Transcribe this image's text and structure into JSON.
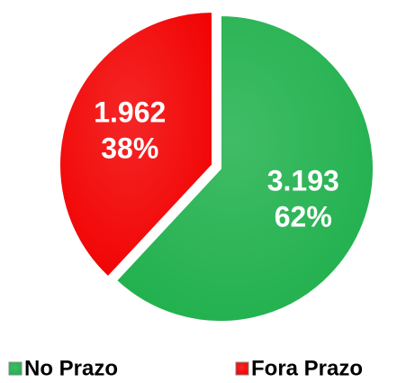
{
  "chart_data": {
    "type": "pie",
    "categories": [
      "No Prazo",
      "Fora Prazo"
    ],
    "values": [
      3193,
      1962
    ],
    "value_labels": [
      "3.193",
      "1.962"
    ],
    "percents": [
      62,
      38
    ],
    "percent_labels": [
      "62%",
      "38%"
    ],
    "colors": [
      "#1fb04c",
      "#f20000"
    ],
    "legend": "bottom"
  }
}
